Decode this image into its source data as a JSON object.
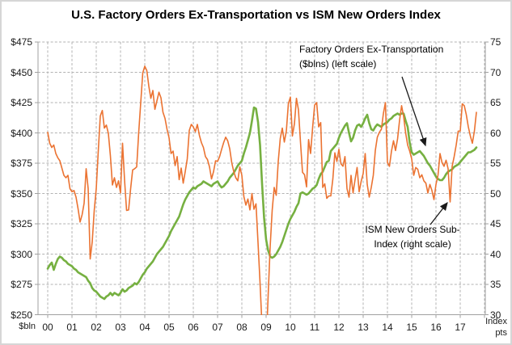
{
  "title": "U.S. Factory Orders Ex-Transportation vs ISM New Orders Index",
  "colors": {
    "factory_orders": "#76B041",
    "ism": "#EB7332",
    "gridline": "#B3B3B3",
    "axis": "#A0A0A0",
    "annotation_arrow": "#1a1a1a",
    "text": "#1a1a1a"
  },
  "left_axis": {
    "unit_label": "$bln",
    "ticks": [
      "$475",
      "$450",
      "$425",
      "$400",
      "$375",
      "$350",
      "$325",
      "$300",
      "$275",
      "$250"
    ]
  },
  "right_axis": {
    "unit_label_line1": "Index",
    "unit_label_line2": "pts",
    "ticks": [
      "75",
      "70",
      "65",
      "60",
      "55",
      "50",
      "45",
      "40",
      "35",
      "30"
    ]
  },
  "x_axis": {
    "labels": [
      "00",
      "01",
      "02",
      "03",
      "04",
      "05",
      "06",
      "07",
      "08",
      "09",
      "10",
      "11",
      "12",
      "13",
      "14",
      "15",
      "16",
      "17"
    ]
  },
  "annotations": {
    "factory": {
      "line1": "Factory Orders Ex-Transportation",
      "line2": "($blns) (left scale)"
    },
    "ism": {
      "line1": "ISM New Orders Sub-",
      "line2": "Index (right scale)"
    }
  },
  "chart_data": {
    "type": "line",
    "title": "U.S. Factory Orders Ex-Transportation vs ISM New Orders Index",
    "frequency": "monthly",
    "x_start": "2000-01",
    "x_end": "2017-09",
    "grid": true,
    "left_ylim": [
      250,
      475
    ],
    "right_ylim": [
      30,
      75
    ],
    "series": [
      {
        "name": "Factory Orders Ex-Transportation ($blns)",
        "axis": "left",
        "color": "#76B041",
        "values": [
          288,
          291,
          293,
          287,
          292,
          296,
          298,
          297,
          295,
          294,
          292,
          291,
          290,
          288,
          287,
          285,
          284,
          283,
          282,
          281,
          278,
          276,
          272,
          270,
          269,
          267,
          265,
          264,
          263,
          265,
          266,
          268,
          266,
          268,
          267,
          266,
          268,
          271,
          269,
          270,
          272,
          273,
          274,
          276,
          275,
          277,
          280,
          283,
          285,
          288,
          290,
          292,
          294,
          297,
          300,
          302,
          304,
          306,
          309,
          312,
          315,
          319,
          322,
          325,
          328,
          331,
          336,
          341,
          345,
          348,
          351,
          353,
          355,
          354,
          356,
          357,
          358,
          360,
          359,
          358,
          357,
          356,
          358,
          359,
          360,
          357,
          355,
          356,
          358,
          360,
          363,
          365,
          367,
          370,
          373,
          375,
          377,
          383,
          388,
          394,
          400,
          410,
          421,
          420,
          409,
          390,
          358,
          330,
          312,
          303,
          298,
          297,
          298,
          300,
          303,
          306,
          310,
          315,
          320,
          325,
          329,
          332,
          335,
          339,
          342,
          350,
          351,
          350,
          349,
          350,
          352,
          354,
          355,
          357,
          362,
          366,
          368,
          372,
          376,
          377,
          385,
          387,
          389,
          391,
          396,
          400,
          403,
          406,
          408,
          400,
          393,
          396,
          402,
          406,
          407,
          405,
          408,
          412,
          415,
          408,
          403,
          402,
          405,
          407,
          406,
          405,
          407,
          408,
          409,
          411,
          412,
          414,
          415,
          416,
          415,
          416,
          416,
          410,
          405,
          392,
          384,
          382,
          383,
          384,
          385,
          383,
          381,
          378,
          375,
          373,
          370,
          367,
          364,
          362,
          361,
          361,
          363,
          366,
          368,
          369,
          370,
          372,
          373,
          374,
          376,
          378,
          380,
          382,
          384,
          384,
          385,
          386,
          388
        ]
      },
      {
        "name": "ISM New Orders Sub-Index",
        "axis": "right",
        "color": "#EB7332",
        "values": [
          60.1,
          58.3,
          57.6,
          58,
          56.6,
          55.9,
          55.4,
          54.2,
          53,
          52.6,
          53,
          50.8,
          50.3,
          50.5,
          49.4,
          47.5,
          45.3,
          46.5,
          48.4,
          54.1,
          50.8,
          39.2,
          42,
          47.2,
          50.8,
          57,
          62.8,
          63.7,
          60.8,
          61.3,
          59.9,
          56.2,
          51.4,
          52.6,
          51,
          52.1,
          50.1,
          58.3,
          52.2,
          47.2,
          47.3,
          50.8,
          53.9,
          54.1,
          54.4,
          60.1,
          65,
          69.9,
          71,
          70.3,
          67.7,
          65.7,
          67,
          63.9,
          65.3,
          66.7,
          65.8,
          63.4,
          62.4,
          60.6,
          59.2,
          56.6,
          57,
          54.6,
          56.1,
          52.3,
          54.2,
          51.7,
          53.6,
          55.7,
          60.4,
          61.4,
          61,
          60.2,
          61.4,
          59.6,
          58.4,
          57.6,
          56.1,
          55.6,
          54.4,
          52.4,
          53.6,
          55.4,
          55.3,
          56.1,
          57.3,
          58.4,
          59.3,
          58.7,
          57.4,
          55.1,
          53.6,
          52.6,
          52.1,
          54.4,
          53,
          49.5,
          48.1,
          49.1,
          47.3,
          50,
          47.4,
          48.3,
          41.9,
          35.3,
          27.9,
          23.1,
          24.5,
          33.1,
          41.2,
          47.2,
          51,
          49.7,
          55.3,
          59.1,
          60.8,
          58.5,
          60.3,
          64.8,
          65.9,
          59.5,
          61.5,
          65.7,
          63.8,
          58.5,
          53.5,
          53.1,
          51.1,
          58.9,
          56.6,
          60.9,
          64.6,
          65,
          61,
          61.7,
          51,
          51.6,
          49.2,
          49.6,
          49.6,
          52.4,
          56.7,
          55.3,
          57.3,
          54.9,
          54.5,
          56.1,
          50.8,
          49.4,
          53,
          50.1,
          52.3,
          54.3,
          50.3,
          52,
          53.3,
          56.6,
          51.5,
          49.4,
          51,
          53,
          57.1,
          59.3,
          60.1,
          60.6,
          63.2,
          65,
          55.1,
          54.5,
          57,
          58.7,
          57.1,
          59,
          62.1,
          64.5,
          62.7,
          60,
          58,
          57,
          55.7,
          53,
          54.3,
          54,
          52.6,
          53.1,
          52.1,
          51.7,
          50.1,
          51.5,
          50.5,
          49,
          51.5,
          53,
          56.6,
          55.1,
          54.5,
          55.5,
          54.1,
          48.6,
          54.5,
          56.1,
          58,
          60.3,
          60.3,
          64.8,
          64.5,
          63,
          61,
          59.5,
          58.3,
          60.3,
          63.4
        ]
      }
    ]
  }
}
